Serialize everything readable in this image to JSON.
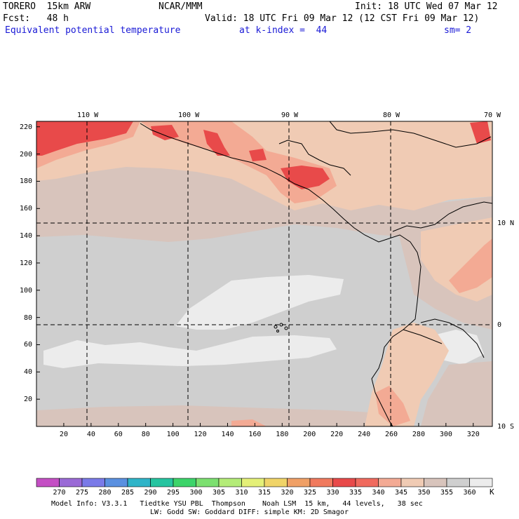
{
  "header": {
    "model": "TORERO  15km ARW",
    "center": "NCAR/MMM",
    "init": "Init: 18 UTC Wed 07 Mar 12",
    "fcst": "Fcst:   48 h",
    "valid": "Valid: 18 UTC Fri 09 Mar 12 (12 CST Fri 09 Mar 12)",
    "field": "Equivalent potential temperature",
    "level": "at k-index =  44",
    "smooth": "sm= 2"
  },
  "map": {
    "top_lon_labels": [
      "110 W",
      "100 W",
      "90 W",
      "80 W",
      "70 W"
    ],
    "right_lat_labels": [
      "10 N",
      "0",
      "10 S"
    ],
    "x_ticks": [
      "20",
      "40",
      "60",
      "80",
      "100",
      "120",
      "140",
      "160",
      "180",
      "200",
      "220",
      "240",
      "260",
      "280",
      "300",
      "320"
    ],
    "y_ticks": [
      "220",
      "200",
      "180",
      "160",
      "140",
      "120",
      "100",
      "80",
      "60",
      "40",
      "20"
    ],
    "colors": {
      "c330": "#e84a4a",
      "c335": "#f06a5e",
      "c340": "#f3aa94",
      "c345": "#f0cbb4",
      "c350": "#d8c4bc",
      "c355": "#cfcfcf",
      "c360": "#ececec"
    }
  },
  "legend": {
    "unit": "K",
    "labels": [
      "270",
      "275",
      "280",
      "285",
      "290",
      "295",
      "300",
      "305",
      "310",
      "315",
      "320",
      "325",
      "330",
      "335",
      "340",
      "345",
      "350",
      "355",
      "360"
    ],
    "colors": [
      "#c44fc4",
      "#9a6ad6",
      "#7a7ae8",
      "#5a90e0",
      "#2fb4c8",
      "#26c4a0",
      "#3cd46a",
      "#7ce070",
      "#b4ec78",
      "#e4f078",
      "#f0d468",
      "#f0a066",
      "#f07a5e",
      "#e84a4a",
      "#f06a5e",
      "#f3aa94",
      "#f0cbb4",
      "#d8c4bc",
      "#cfcfcf",
      "#ececec"
    ]
  },
  "footer": {
    "line1": "Model Info: V3.3.1   Tiedtke YSU PBL  Thompson    Noah LSM  15 km,   44 levels,   38 sec",
    "line2": "LW: Godd SW: Goddard DIFF: simple KM: 2D Smagor"
  }
}
